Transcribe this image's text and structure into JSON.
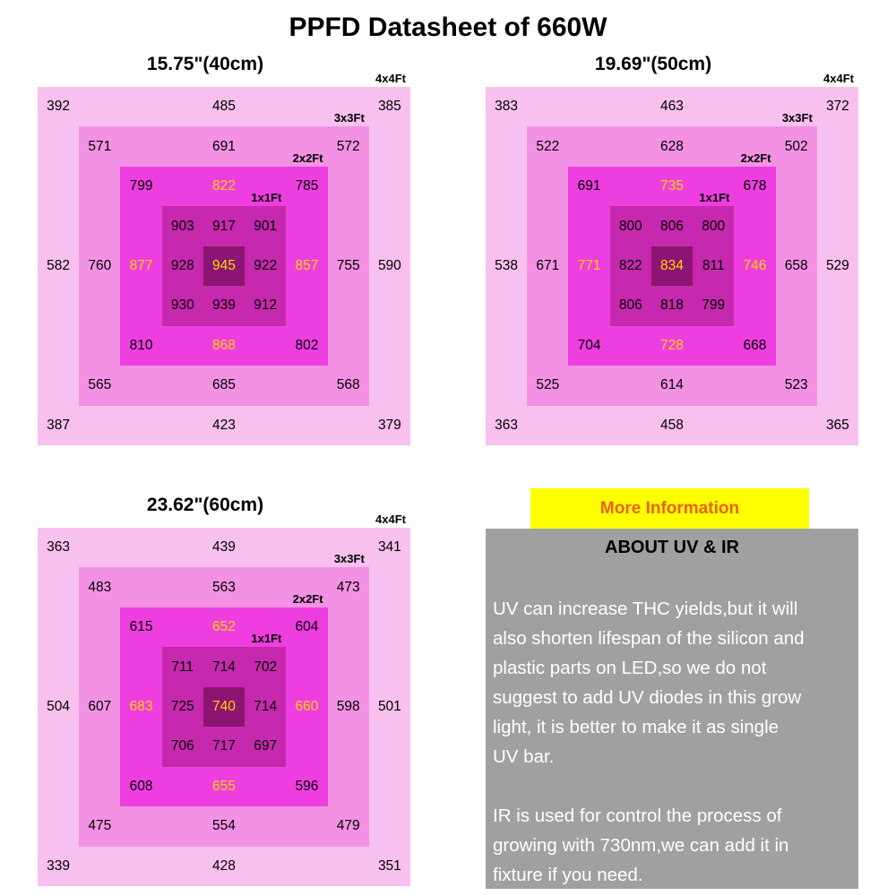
{
  "page_title": "PPFD Datasheet of 660W",
  "ring_labels": [
    "4x4Ft",
    "3x3Ft",
    "2x2Ft",
    "1x1Ft"
  ],
  "colors": {
    "zone_4x4": "#f8c0ee",
    "zone_3x3": "#f392e4",
    "zone_2x2": "#ee3ee0",
    "zone_1x1": "#c729ae",
    "center_cell": "#8c1472",
    "highlight_number": "#ffd800",
    "banner_bg": "#ffff00",
    "banner_text": "#e8611c",
    "panel_bg": "#a0a0a0"
  },
  "cell_format": "[row 1-9, col 1-9, ppfd_value, highlight_flag]",
  "chart_data": [
    {
      "type": "heatmap",
      "title": "15.75\"(40cm)",
      "zones": [
        "4x4Ft",
        "3x3Ft",
        "2x2Ft",
        "1x1Ft"
      ],
      "cells": [
        [
          1,
          1,
          392
        ],
        [
          1,
          5,
          485
        ],
        [
          1,
          9,
          385
        ],
        [
          2,
          2,
          571
        ],
        [
          2,
          5,
          691
        ],
        [
          2,
          8,
          572
        ],
        [
          3,
          3,
          799
        ],
        [
          3,
          5,
          822,
          1
        ],
        [
          3,
          7,
          785
        ],
        [
          4,
          4,
          903
        ],
        [
          4,
          5,
          917
        ],
        [
          4,
          6,
          901
        ],
        [
          5,
          1,
          582
        ],
        [
          5,
          2,
          760
        ],
        [
          5,
          3,
          877,
          1
        ],
        [
          5,
          4,
          928
        ],
        [
          5,
          5,
          945,
          1
        ],
        [
          5,
          6,
          922
        ],
        [
          5,
          7,
          857,
          1
        ],
        [
          5,
          8,
          755
        ],
        [
          5,
          9,
          590
        ],
        [
          6,
          4,
          930
        ],
        [
          6,
          5,
          939
        ],
        [
          6,
          6,
          912
        ],
        [
          7,
          3,
          810
        ],
        [
          7,
          5,
          868,
          1
        ],
        [
          7,
          7,
          802
        ],
        [
          8,
          2,
          565
        ],
        [
          8,
          5,
          685
        ],
        [
          8,
          8,
          568
        ],
        [
          9,
          1,
          387
        ],
        [
          9,
          5,
          423
        ],
        [
          9,
          9,
          379
        ]
      ]
    },
    {
      "type": "heatmap",
      "title": "19.69\"(50cm)",
      "zones": [
        "4x4Ft",
        "3x3Ft",
        "2x2Ft",
        "1x1Ft"
      ],
      "cells": [
        [
          1,
          1,
          383
        ],
        [
          1,
          5,
          463
        ],
        [
          1,
          9,
          372
        ],
        [
          2,
          2,
          522
        ],
        [
          2,
          5,
          628
        ],
        [
          2,
          8,
          502
        ],
        [
          3,
          3,
          691
        ],
        [
          3,
          5,
          735,
          1
        ],
        [
          3,
          7,
          678
        ],
        [
          4,
          4,
          800
        ],
        [
          4,
          5,
          806
        ],
        [
          4,
          6,
          800
        ],
        [
          5,
          1,
          538
        ],
        [
          5,
          2,
          671
        ],
        [
          5,
          3,
          771,
          1
        ],
        [
          5,
          4,
          822
        ],
        [
          5,
          5,
          834,
          1
        ],
        [
          5,
          6,
          811
        ],
        [
          5,
          7,
          746,
          1
        ],
        [
          5,
          8,
          658
        ],
        [
          5,
          9,
          529
        ],
        [
          6,
          4,
          806
        ],
        [
          6,
          5,
          818
        ],
        [
          6,
          6,
          799
        ],
        [
          7,
          3,
          704
        ],
        [
          7,
          5,
          728,
          1
        ],
        [
          7,
          7,
          668
        ],
        [
          8,
          2,
          525
        ],
        [
          8,
          5,
          614
        ],
        [
          8,
          8,
          523
        ],
        [
          9,
          1,
          363
        ],
        [
          9,
          5,
          458
        ],
        [
          9,
          9,
          365
        ]
      ]
    },
    {
      "type": "heatmap",
      "title": "23.62\"(60cm)",
      "zones": [
        "4x4Ft",
        "3x3Ft",
        "2x2Ft",
        "1x1Ft"
      ],
      "cells": [
        [
          1,
          1,
          363
        ],
        [
          1,
          5,
          439
        ],
        [
          1,
          9,
          341
        ],
        [
          2,
          2,
          483
        ],
        [
          2,
          5,
          563
        ],
        [
          2,
          8,
          473
        ],
        [
          3,
          3,
          615
        ],
        [
          3,
          5,
          652,
          1
        ],
        [
          3,
          7,
          604
        ],
        [
          4,
          4,
          711
        ],
        [
          4,
          5,
          714
        ],
        [
          4,
          6,
          702
        ],
        [
          5,
          1,
          504
        ],
        [
          5,
          2,
          607
        ],
        [
          5,
          3,
          683,
          1
        ],
        [
          5,
          4,
          725
        ],
        [
          5,
          5,
          740,
          1
        ],
        [
          5,
          6,
          714
        ],
        [
          5,
          7,
          660,
          1
        ],
        [
          5,
          8,
          598
        ],
        [
          5,
          9,
          501
        ],
        [
          6,
          4,
          706
        ],
        [
          6,
          5,
          717
        ],
        [
          6,
          6,
          697
        ],
        [
          7,
          3,
          608
        ],
        [
          7,
          5,
          655,
          1
        ],
        [
          7,
          7,
          596
        ],
        [
          8,
          2,
          475
        ],
        [
          8,
          5,
          554
        ],
        [
          8,
          8,
          479
        ],
        [
          9,
          1,
          339
        ],
        [
          9,
          5,
          428
        ],
        [
          9,
          9,
          351
        ]
      ]
    }
  ],
  "info_panel": {
    "banner": "More Information",
    "heading": "ABOUT UV & IR",
    "body": "UV can increase THC yields,but it will\nalso shorten lifespan of the silicon and\nplastic parts on LED,so we do not\nsuggest to add UV diodes in this grow\nlight, it is better to make it as single\nUV bar.\n\nIR is used for control the process of\ngrowing with 730nm,we can add it in\nfixture if you need."
  }
}
